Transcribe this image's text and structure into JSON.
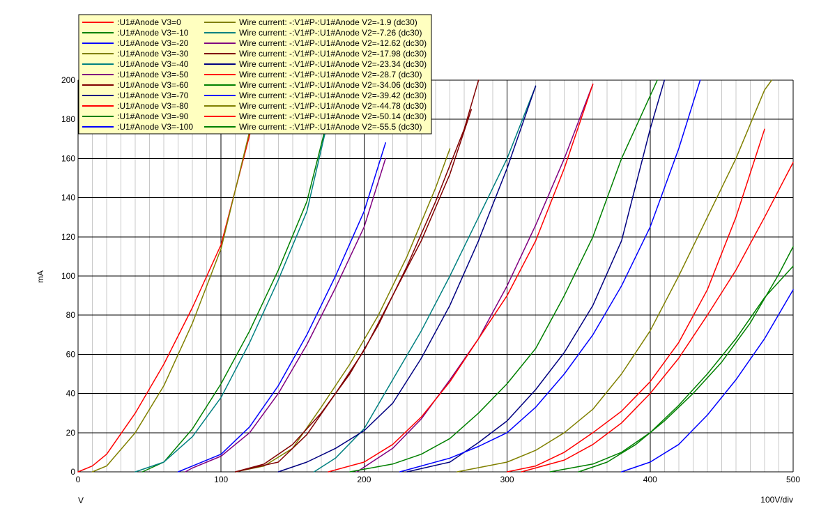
{
  "chart_data": {
    "type": "line",
    "xlabel": "V",
    "ylabel": "mA",
    "scale_label": "100V/div",
    "xlim": [
      0,
      500
    ],
    "ylim": [
      0,
      200
    ],
    "x_ticks": [
      0,
      100,
      200,
      300,
      400,
      500
    ],
    "y_ticks": [
      0,
      20,
      40,
      60,
      80,
      100,
      120,
      140,
      160,
      180,
      200
    ],
    "grid": true,
    "legend_position": "top-left",
    "legend_background": "#ffffc0",
    "series": [
      {
        "name": ":U1#Anode V3=0",
        "color": "#ff0000",
        "x": [
          0,
          10,
          20,
          40,
          60,
          80,
          100,
          120,
          130
        ],
        "y": [
          0,
          3,
          9,
          30,
          55,
          84,
          116,
          172,
          200
        ]
      },
      {
        "name": ":U1#Anode V3=-10",
        "color": "#008000",
        "x": [
          45,
          60,
          80,
          100,
          120,
          140,
          160,
          180
        ],
        "y": [
          0,
          5,
          22,
          45,
          72,
          103,
          138,
          196
        ]
      },
      {
        "name": ":U1#Anode V3=-20",
        "color": "#0000ff",
        "x": [
          70,
          80,
          100,
          120,
          140,
          160,
          180,
          200,
          215
        ],
        "y": [
          0,
          3,
          9,
          23,
          44,
          70,
          100,
          133,
          168
        ]
      },
      {
        "name": ":U1#Anode V3=-30",
        "color": "#808000",
        "x": [
          110,
          130,
          150,
          170,
          190,
          210,
          230,
          250,
          260
        ],
        "y": [
          0,
          3,
          12,
          33,
          55,
          80,
          110,
          145,
          165
        ]
      },
      {
        "name": ":U1#Anode V3=-40",
        "color": "#008080",
        "x": [
          165,
          180,
          200,
          220,
          240,
          260,
          280,
          300,
          320
        ],
        "y": [
          0,
          7,
          22,
          47,
          72,
          100,
          130,
          160,
          197
        ]
      },
      {
        "name": ":U1#Anode V3=-50",
        "color": "#800080",
        "x": [
          195,
          220,
          240,
          260,
          280,
          300,
          320,
          340,
          360
        ],
        "y": [
          0,
          12,
          27,
          47,
          68,
          95,
          126,
          160,
          198
        ]
      },
      {
        "name": ":U1#Anode V3=-60",
        "color": "#800000",
        "x": [
          110,
          140,
          160,
          180,
          200,
          220,
          240,
          260,
          275
        ],
        "y": [
          0,
          5,
          19,
          40,
          62,
          90,
          118,
          152,
          185
        ]
      },
      {
        "name": ":U1#Anode V3=-70",
        "color": "#000080",
        "x": [
          230,
          260,
          280,
          300,
          320,
          340,
          360,
          380,
          400,
          410
        ],
        "y": [
          0,
          5,
          15,
          26,
          42,
          61,
          85,
          118,
          175,
          200
        ]
      },
      {
        "name": ":U1#Anode V3=-80",
        "color": "#ff0000",
        "x": [
          300,
          320,
          340,
          360,
          380,
          400,
          420,
          440,
          460,
          480
        ],
        "y": [
          0,
          3,
          10,
          20,
          31,
          46,
          66,
          93,
          130,
          175
        ]
      },
      {
        "name": ":U1#Anode V3=-90",
        "color": "#008000",
        "x": [
          350,
          370,
          390,
          410,
          430,
          450,
          470,
          490,
          500
        ],
        "y": [
          0,
          5,
          14,
          26,
          40,
          56,
          76,
          101,
          115
        ]
      },
      {
        "name": ":U1#Anode V3=-100",
        "color": "#0000ff",
        "x": [
          380,
          400,
          420,
          440,
          460,
          480,
          500
        ],
        "y": [
          0,
          5,
          14,
          29,
          47,
          68,
          93
        ]
      },
      {
        "name": "Wire current: -:V1#P-:U1#Anode V2=-1.9 (dc30)",
        "color": "#808000",
        "x": [
          10,
          20,
          40,
          60,
          80,
          100,
          120,
          125
        ],
        "y": [
          0,
          3,
          20,
          44,
          76,
          114,
          174,
          200
        ]
      },
      {
        "name": "Wire current: -:V1#P-:U1#Anode V2=-7.26 (dc30)",
        "color": "#008080",
        "x": [
          40,
          60,
          80,
          100,
          120,
          140,
          160,
          180
        ],
        "y": [
          0,
          5,
          18,
          38,
          66,
          98,
          133,
          196
        ]
      },
      {
        "name": "Wire current: -:V1#P-:U1#Anode V2=-12.62 (dc30)",
        "color": "#800080",
        "x": [
          75,
          80,
          100,
          120,
          140,
          160,
          180,
          200,
          215
        ],
        "y": [
          0,
          2,
          8,
          20,
          40,
          65,
          94,
          125,
          160
        ]
      },
      {
        "name": "Wire current: -:V1#P-:U1#Anode V2=-17.98 (dc30)",
        "color": "#800000",
        "x": [
          110,
          130,
          150,
          170,
          190,
          210,
          230,
          250,
          270,
          280
        ],
        "y": [
          0,
          4,
          14,
          30,
          50,
          75,
          105,
          138,
          175,
          200
        ]
      },
      {
        "name": "Wire current: -:V1#P-:U1#Anode V2=-23.34 (dc30)",
        "color": "#000080",
        "x": [
          140,
          160,
          180,
          200,
          220,
          240,
          260,
          280,
          300,
          320
        ],
        "y": [
          0,
          5,
          12,
          21,
          35,
          58,
          85,
          118,
          155,
          197
        ]
      },
      {
        "name": "Wire current: -:V1#P-:U1#Anode V2=-28.7 (dc30)",
        "color": "#ff0000",
        "x": [
          175,
          200,
          220,
          240,
          260,
          280,
          300,
          320,
          340,
          360
        ],
        "y": [
          0,
          5,
          14,
          28,
          46,
          68,
          90,
          118,
          155,
          198
        ]
      },
      {
        "name": "Wire current: -:V1#P-:U1#Anode V2=-34.06 (dc30)",
        "color": "#008000",
        "x": [
          190,
          220,
          240,
          260,
          280,
          300,
          320,
          340,
          360,
          380,
          405
        ],
        "y": [
          0,
          4,
          9,
          17,
          30,
          45,
          63,
          90,
          120,
          160,
          200
        ]
      },
      {
        "name": "Wire current: -:V1#P-:U1#Anode V2=-39.42 (dc30)",
        "color": "#0000ff",
        "x": [
          225,
          260,
          280,
          300,
          320,
          340,
          360,
          380,
          400,
          420,
          435
        ],
        "y": [
          0,
          7,
          13,
          20,
          33,
          50,
          70,
          95,
          125,
          165,
          200
        ]
      },
      {
        "name": "Wire current: -:V1#P-:U1#Anode V2=-44.78 (dc30)",
        "color": "#808000",
        "x": [
          265,
          300,
          320,
          340,
          360,
          380,
          400,
          420,
          440,
          460,
          480,
          485
        ],
        "y": [
          0,
          5,
          11,
          20,
          32,
          50,
          72,
          100,
          130,
          160,
          195,
          200
        ]
      },
      {
        "name": "Wire current: -:V1#P-:U1#Anode V2=-50.14 (dc30)",
        "color": "#ff0000",
        "x": [
          310,
          340,
          360,
          380,
          400,
          420,
          440,
          460,
          480,
          500
        ],
        "y": [
          0,
          6,
          14,
          25,
          40,
          58,
          80,
          103,
          130,
          158
        ]
      },
      {
        "name": "Wire current: -:V1#P-:U1#Anode V2=-55.5 (dc30)",
        "color": "#008000",
        "x": [
          330,
          360,
          380,
          400,
          420,
          440,
          460,
          480,
          500
        ],
        "y": [
          0,
          4,
          10,
          20,
          34,
          50,
          68,
          89,
          105
        ]
      }
    ]
  }
}
